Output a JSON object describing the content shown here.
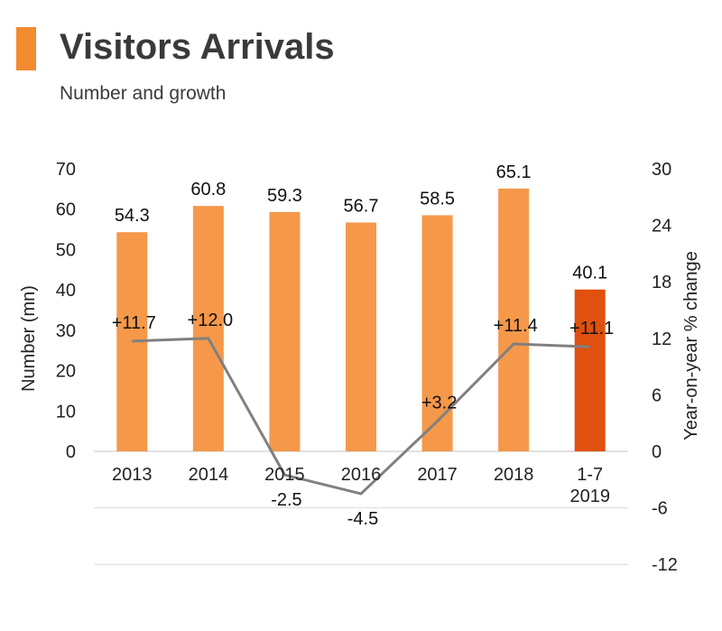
{
  "title": "Visitors Arrivals",
  "subtitle": "Number and growth",
  "chart_data": {
    "type": "bar",
    "categories": [
      "2013",
      "2014",
      "2015",
      "2016",
      "2017",
      "2018",
      "1-7\n2019"
    ],
    "series": [
      {
        "type": "bar",
        "values": [
          54.3,
          60.8,
          59.3,
          56.7,
          58.5,
          65.1,
          40.1
        ],
        "labels": [
          "54.3",
          "60.8",
          "59.3",
          "56.7",
          "58.5",
          "65.1",
          "40.1"
        ],
        "color": "#f5984a",
        "highlight_color": "#e0500f",
        "axis": "left"
      },
      {
        "type": "line",
        "values": [
          11.7,
          12.0,
          -2.5,
          -4.5,
          3.2,
          11.4,
          11.1
        ],
        "labels": [
          "+11.7",
          "+12.0",
          "-2.5",
          "-4.5",
          "+3.2",
          "+11.4",
          "+11.1"
        ],
        "color": "#808080",
        "axis": "right"
      }
    ],
    "ylabel": "Number (mn)",
    "y2label": "Year-on-year % change",
    "ylim": [
      0,
      70
    ],
    "y2lim": [
      -12,
      30
    ],
    "yticks": [
      "0",
      "10",
      "20",
      "30",
      "40",
      "50",
      "60",
      "70"
    ],
    "y2ticks": [
      "-12",
      "-6",
      "0",
      "6",
      "12",
      "18",
      "24",
      "30"
    ],
    "grid": "horizontal lines below zero only",
    "legend": "none"
  }
}
